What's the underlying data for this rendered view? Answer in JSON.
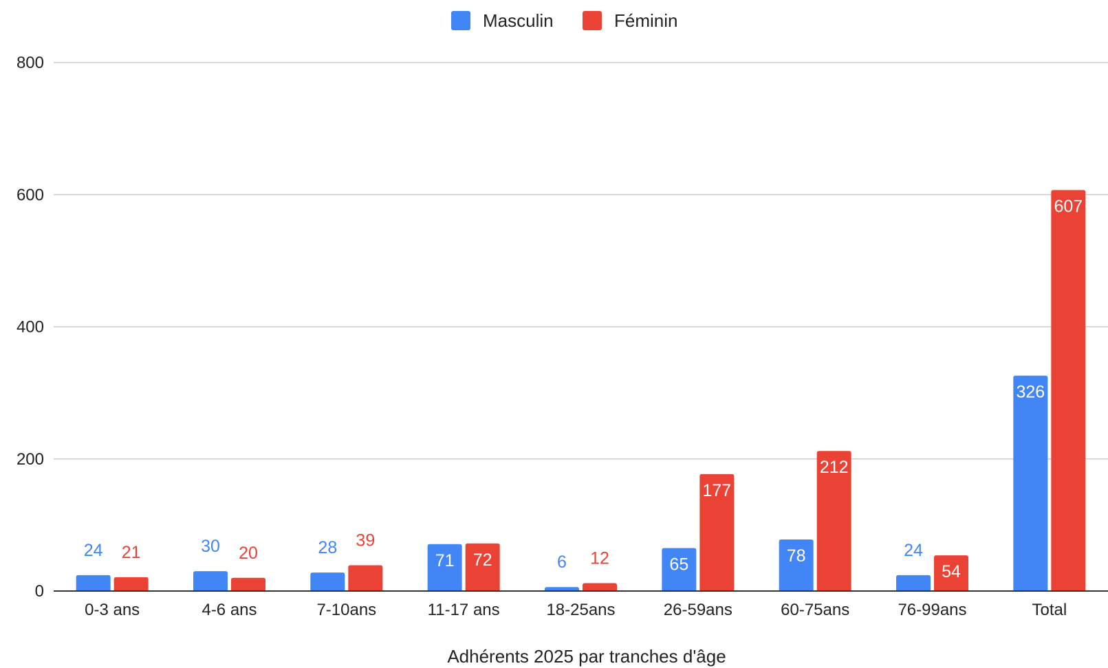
{
  "chart_data": {
    "type": "bar",
    "title": "",
    "xlabel": "Adhérents 2025 par tranches d'âge",
    "ylabel": "",
    "categories": [
      "0-3 ans",
      "4-6 ans",
      "7-10ans",
      "11-17 ans",
      "18-25ans",
      "26-59ans",
      "60-75ans",
      "76-99ans",
      "Total"
    ],
    "series": [
      {
        "name": "Masculin",
        "color": "#4285F4",
        "values": [
          24,
          30,
          28,
          71,
          6,
          65,
          78,
          24,
          326
        ]
      },
      {
        "name": "Féminin",
        "color": "#EA4335",
        "values": [
          21,
          20,
          39,
          72,
          12,
          177,
          212,
          54,
          607
        ]
      }
    ],
    "ylim": [
      0,
      800
    ],
    "yticks": [
      0,
      200,
      400,
      600,
      800
    ],
    "grid": true,
    "legend": "top-center",
    "data_labels": true
  }
}
